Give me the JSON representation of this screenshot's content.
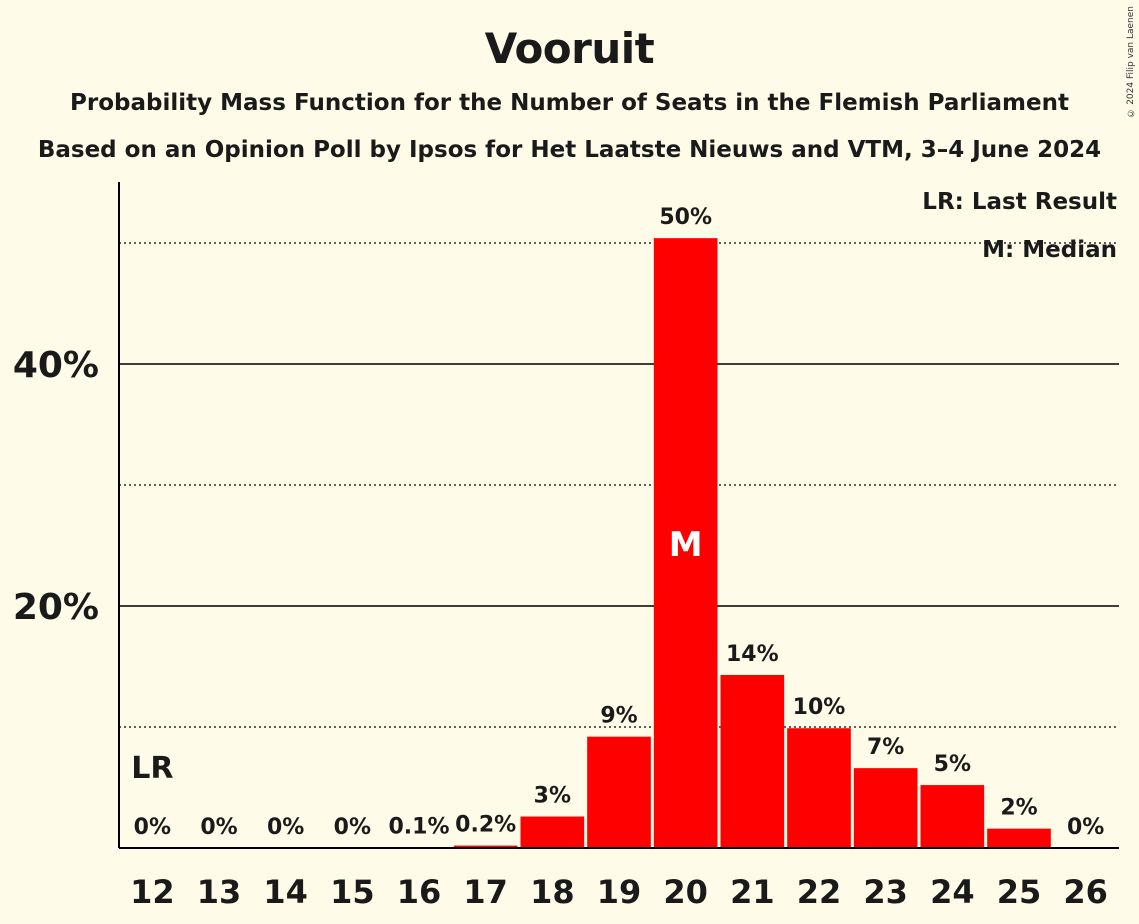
{
  "title": "Vooruit",
  "subtitle": "Probability Mass Function for the Number of Seats in the Flemish Parliament",
  "source": "Based on an Opinion Poll by Ipsos for Het Laatste Nieuws and VTM, 3–4 June 2024",
  "copyright": "© 2024 Filip van Laenen",
  "legend": {
    "last_result": "LR: Last Result",
    "median": "M: Median"
  },
  "colors": {
    "bar": "#ff0000",
    "background": "#fefbe8",
    "median_label": "#ffffff"
  },
  "chart_data": {
    "type": "bar",
    "categories": [
      "12",
      "13",
      "14",
      "15",
      "16",
      "17",
      "18",
      "19",
      "20",
      "21",
      "22",
      "23",
      "24",
      "25",
      "26"
    ],
    "values": [
      0,
      0,
      0,
      0,
      0.05,
      0.2,
      2.6,
      9.2,
      50.4,
      14.3,
      9.9,
      6.6,
      5.2,
      1.6,
      0
    ],
    "data_labels": [
      "0%",
      "0%",
      "0%",
      "0%",
      "0.1%",
      "0.2%",
      "3%",
      "9%",
      "50%",
      "14%",
      "10%",
      "7%",
      "5%",
      "2%",
      "0%"
    ],
    "ylim": [
      0,
      55
    ],
    "y_ticks": [
      {
        "value": 20,
        "label": "20%"
      },
      {
        "value": 40,
        "label": "40%"
      }
    ],
    "gridlines_solid": [
      20,
      40
    ],
    "gridlines_dotted": [
      10,
      30,
      50
    ],
    "last_result_category": "12",
    "last_result_label": "LR",
    "median_category": "20",
    "median_label": "M",
    "legend_position": "top-right"
  }
}
